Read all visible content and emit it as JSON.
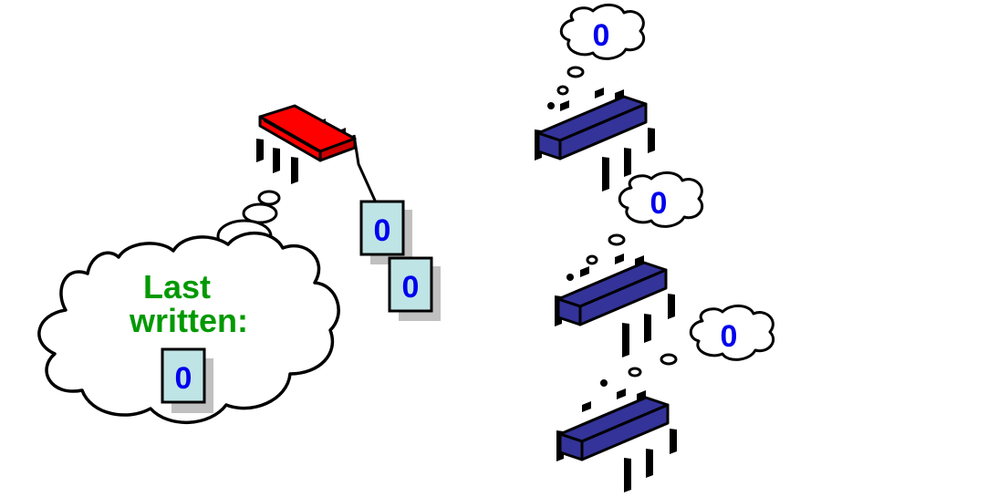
{
  "writer": {
    "thought_label_line1": "Last",
    "thought_label_line2": "written:",
    "last_written_value": "0",
    "chip_color": "#ff0000",
    "label_color": "#009900"
  },
  "messages": [
    {
      "value": "0"
    },
    {
      "value": "0"
    }
  ],
  "readers": [
    {
      "thought_value": "0"
    },
    {
      "thought_value": "0"
    },
    {
      "thought_value": "0"
    }
  ],
  "colors": {
    "reader_chip": "#333399",
    "value_text": "#0000ee",
    "box_fill": "#bfe4e6",
    "shadow": "#c0c0c0"
  }
}
